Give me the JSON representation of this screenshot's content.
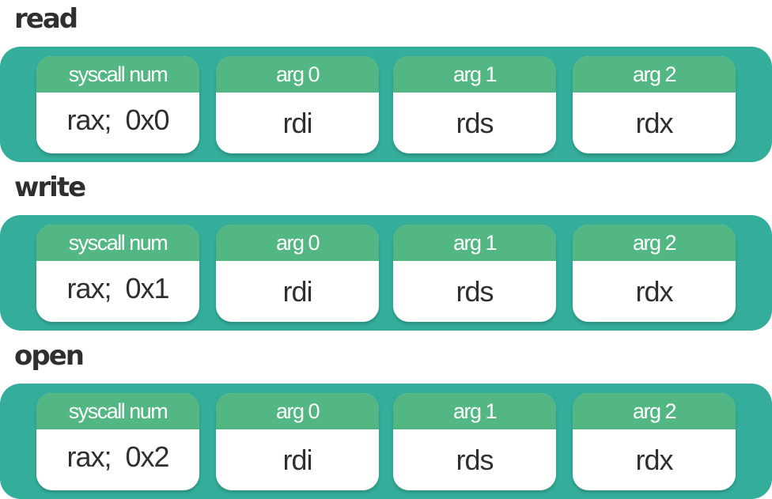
{
  "syscalls": [
    {
      "name": "read",
      "fields": [
        {
          "header": "syscall num",
          "value": "rax;  0x0"
        },
        {
          "header": "arg 0",
          "value": "rdi"
        },
        {
          "header": "arg 1",
          "value": "rds"
        },
        {
          "header": "arg 2",
          "value": "rdx"
        }
      ]
    },
    {
      "name": "write",
      "fields": [
        {
          "header": "syscall num",
          "value": "rax;  0x1"
        },
        {
          "header": "arg 0",
          "value": "rdi"
        },
        {
          "header": "arg 1",
          "value": "rds"
        },
        {
          "header": "arg 2",
          "value": "rdx"
        }
      ]
    },
    {
      "name": "open",
      "fields": [
        {
          "header": "syscall num",
          "value": "rax;  0x2"
        },
        {
          "header": "arg 0",
          "value": "rdi"
        },
        {
          "header": "arg 1",
          "value": "rds"
        },
        {
          "header": "arg 2",
          "value": "rdx"
        }
      ]
    }
  ],
  "colors": {
    "band": "#34ae9b",
    "card_header": "#52b783",
    "card_body": "#ffffff",
    "title_text": "#2f2f2f"
  }
}
